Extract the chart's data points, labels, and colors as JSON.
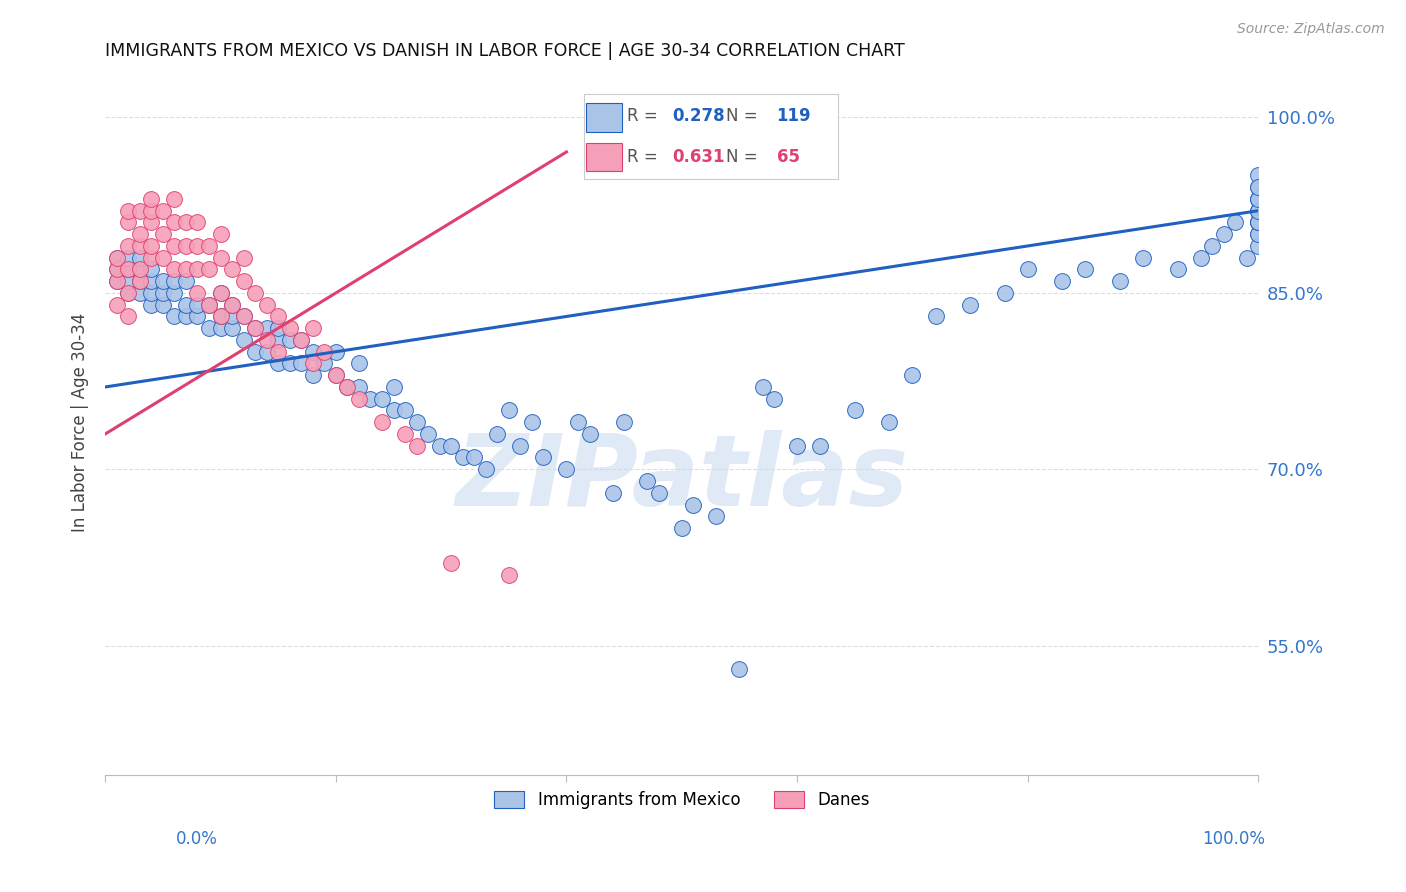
{
  "title": "IMMIGRANTS FROM MEXICO VS DANISH IN LABOR FORCE | AGE 30-34 CORRELATION CHART",
  "source": "Source: ZipAtlas.com",
  "ylabel": "In Labor Force | Age 30-34",
  "ytick_labels": [
    "100.0%",
    "85.0%",
    "70.0%",
    "55.0%"
  ],
  "ytick_values": [
    1.0,
    0.85,
    0.7,
    0.55
  ],
  "xlim": [
    0.0,
    1.0
  ],
  "ylim": [
    0.44,
    1.04
  ],
  "legend_blue_r": "0.278",
  "legend_blue_n": "119",
  "legend_pink_r": "0.631",
  "legend_pink_n": "65",
  "legend_blue_label": "Immigrants from Mexico",
  "legend_pink_label": "Danes",
  "blue_color": "#aac4e8",
  "pink_color": "#f5a0b8",
  "blue_line_color": "#2060c0",
  "pink_line_color": "#e04070",
  "background_color": "#ffffff",
  "grid_color": "#dddddd",
  "title_color": "#111111",
  "axis_label_color": "#444444",
  "right_tick_color": "#3377cc",
  "watermark_color": "#c8d8ef",
  "blue_trend_x0": 0.0,
  "blue_trend_y0": 0.77,
  "blue_trend_x1": 1.0,
  "blue_trend_y1": 0.92,
  "pink_trend_x0": 0.0,
  "pink_trend_y0": 0.73,
  "pink_trend_x1": 0.4,
  "pink_trend_y1": 0.97,
  "blue_x": [
    0.01,
    0.01,
    0.01,
    0.02,
    0.02,
    0.02,
    0.02,
    0.03,
    0.03,
    0.03,
    0.03,
    0.04,
    0.04,
    0.04,
    0.04,
    0.05,
    0.05,
    0.05,
    0.06,
    0.06,
    0.06,
    0.07,
    0.07,
    0.07,
    0.08,
    0.08,
    0.09,
    0.09,
    0.1,
    0.1,
    0.1,
    0.11,
    0.11,
    0.11,
    0.12,
    0.12,
    0.13,
    0.13,
    0.14,
    0.14,
    0.15,
    0.15,
    0.15,
    0.16,
    0.16,
    0.17,
    0.17,
    0.18,
    0.18,
    0.19,
    0.2,
    0.2,
    0.21,
    0.22,
    0.22,
    0.23,
    0.24,
    0.25,
    0.25,
    0.26,
    0.27,
    0.28,
    0.29,
    0.3,
    0.31,
    0.32,
    0.33,
    0.34,
    0.35,
    0.36,
    0.37,
    0.38,
    0.4,
    0.41,
    0.42,
    0.44,
    0.45,
    0.47,
    0.48,
    0.5,
    0.51,
    0.53,
    0.55,
    0.57,
    0.58,
    0.6,
    0.62,
    0.65,
    0.68,
    0.7,
    0.72,
    0.75,
    0.78,
    0.8,
    0.83,
    0.85,
    0.88,
    0.9,
    0.93,
    0.95,
    0.96,
    0.97,
    0.98,
    0.99,
    1.0,
    1.0,
    1.0,
    1.0,
    1.0,
    1.0,
    1.0,
    1.0,
    1.0,
    1.0,
    1.0,
    1.0,
    1.0,
    1.0,
    1.0
  ],
  "blue_y": [
    0.86,
    0.87,
    0.88,
    0.85,
    0.86,
    0.87,
    0.88,
    0.85,
    0.86,
    0.87,
    0.88,
    0.84,
    0.85,
    0.86,
    0.87,
    0.84,
    0.85,
    0.86,
    0.83,
    0.85,
    0.86,
    0.83,
    0.84,
    0.86,
    0.83,
    0.84,
    0.82,
    0.84,
    0.82,
    0.83,
    0.85,
    0.82,
    0.83,
    0.84,
    0.81,
    0.83,
    0.8,
    0.82,
    0.8,
    0.82,
    0.79,
    0.81,
    0.82,
    0.79,
    0.81,
    0.79,
    0.81,
    0.78,
    0.8,
    0.79,
    0.78,
    0.8,
    0.77,
    0.77,
    0.79,
    0.76,
    0.76,
    0.75,
    0.77,
    0.75,
    0.74,
    0.73,
    0.72,
    0.72,
    0.71,
    0.71,
    0.7,
    0.73,
    0.75,
    0.72,
    0.74,
    0.71,
    0.7,
    0.74,
    0.73,
    0.68,
    0.74,
    0.69,
    0.68,
    0.65,
    0.67,
    0.66,
    0.53,
    0.77,
    0.76,
    0.72,
    0.72,
    0.75,
    0.74,
    0.78,
    0.83,
    0.84,
    0.85,
    0.87,
    0.86,
    0.87,
    0.86,
    0.88,
    0.87,
    0.88,
    0.89,
    0.9,
    0.91,
    0.88,
    0.9,
    0.89,
    0.91,
    0.9,
    0.92,
    0.91,
    0.93,
    0.92,
    0.91,
    0.93,
    0.92,
    0.94,
    0.93,
    0.95,
    0.94
  ],
  "pink_x": [
    0.01,
    0.01,
    0.01,
    0.01,
    0.02,
    0.02,
    0.02,
    0.02,
    0.02,
    0.02,
    0.03,
    0.03,
    0.03,
    0.03,
    0.03,
    0.04,
    0.04,
    0.04,
    0.04,
    0.04,
    0.05,
    0.05,
    0.05,
    0.06,
    0.06,
    0.06,
    0.06,
    0.07,
    0.07,
    0.07,
    0.08,
    0.08,
    0.08,
    0.08,
    0.09,
    0.09,
    0.09,
    0.1,
    0.1,
    0.1,
    0.1,
    0.11,
    0.11,
    0.12,
    0.12,
    0.12,
    0.13,
    0.13,
    0.14,
    0.14,
    0.15,
    0.15,
    0.16,
    0.17,
    0.18,
    0.18,
    0.19,
    0.2,
    0.21,
    0.22,
    0.24,
    0.26,
    0.27,
    0.3,
    0.35
  ],
  "pink_y": [
    0.84,
    0.86,
    0.87,
    0.88,
    0.83,
    0.85,
    0.87,
    0.89,
    0.91,
    0.92,
    0.86,
    0.87,
    0.89,
    0.9,
    0.92,
    0.88,
    0.89,
    0.91,
    0.92,
    0.93,
    0.88,
    0.9,
    0.92,
    0.87,
    0.89,
    0.91,
    0.93,
    0.87,
    0.89,
    0.91,
    0.85,
    0.87,
    0.89,
    0.91,
    0.84,
    0.87,
    0.89,
    0.83,
    0.85,
    0.88,
    0.9,
    0.84,
    0.87,
    0.83,
    0.86,
    0.88,
    0.82,
    0.85,
    0.81,
    0.84,
    0.8,
    0.83,
    0.82,
    0.81,
    0.79,
    0.82,
    0.8,
    0.78,
    0.77,
    0.76,
    0.74,
    0.73,
    0.72,
    0.62,
    0.61
  ]
}
